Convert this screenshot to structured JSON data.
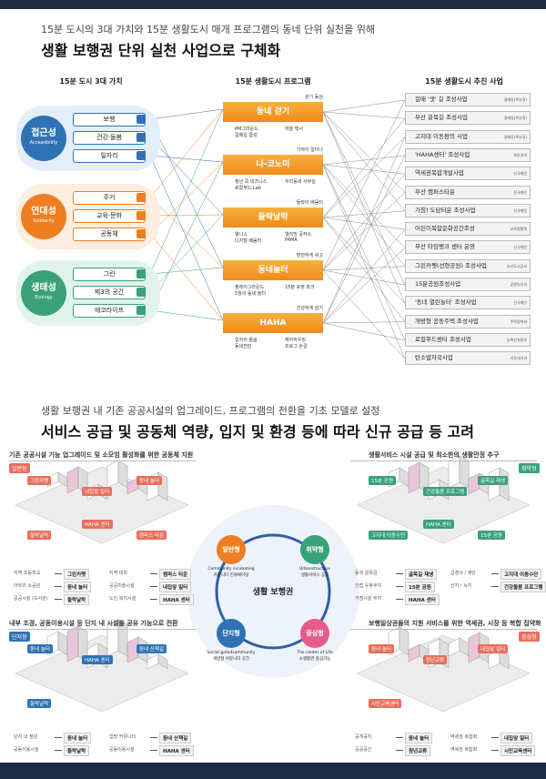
{
  "header": {
    "subtitle": "15분 도시의 3대 가치와 15분 생활도시 매개 프로그램의 동네 단위 실천을 위해",
    "title": "생활 보행권 단위 실천 사업으로 구체화"
  },
  "columns": [
    "15분 도시 3대 가치",
    "15분 생활도시 프로그램",
    "15분 생활도시 추진 사업"
  ],
  "values": [
    {
      "name": "접근성",
      "en": "Accessibility",
      "items": [
        "보행",
        "건강·돌봄",
        "일자리"
      ]
    },
    {
      "name": "연대성",
      "en": "Solidarity",
      "items": [
        "주거",
        "교육·문화",
        "공동체"
      ]
    },
    {
      "name": "생태성",
      "en": "Ecology",
      "items": [
        "그린",
        "제3의 공간",
        "에코라이프"
      ]
    }
  ],
  "programs": [
    {
      "tag": "걷기 동심",
      "name": "동네 걷기",
      "items": [
        "PM그라운드",
        "마을 택시",
        "걸매길 줍깅"
      ]
    },
    {
      "tag": "가까이 일터나",
      "name": "나-코노미",
      "items": [
        "청년 콕 비즈니스",
        "우리동네 사무실",
        "로컬푸드 Lab"
      ]
    },
    {
      "tag": "들락이 배움터",
      "name": "들락날락",
      "items": [
        "웰니스",
        "웰리빙 공작소",
        "디지털 배움터",
        "PAMA"
      ]
    },
    {
      "tag": "편안하게 쉬고",
      "name": "동네놀터",
      "items": [
        "플레이그라운드",
        "15분 포켓 파크",
        "5월의 동네 놀터"
      ]
    },
    {
      "tag": "건강하게 살기",
      "name": "HAHA",
      "items": [
        "일자리 돌봄",
        "케어하우징",
        "동네전담",
        "프로그 손길"
      ]
    }
  ],
  "projects": [
    {
      "name": "걸매 '샛' 길 조성사업",
      "tag": "걸매동(북부권)"
    },
    {
      "name": "부산 골목길 조성사업",
      "tag": "걸매동(북부권)"
    },
    {
      "name": "고지대 이동편의 사업",
      "tag": "걸매동(북부권)"
    },
    {
      "name": "'HAHA센터' 조성사업",
      "tag": "북부권역"
    },
    {
      "name": "역세권복합개발사업",
      "tag": "신규제안"
    },
    {
      "name": "부산 캠퍼스타운",
      "tag": "신규제안"
    },
    {
      "name": "가칭) 도담터운 조성사업",
      "tag": "신규제안"
    },
    {
      "name": "어린이복합문화공간조성",
      "tag": "교육청협력"
    },
    {
      "name": "부산 타임뱅크 센터 운영",
      "tag": "신규제안"
    },
    {
      "name": "그린카펫(선형공원) 조성사업",
      "tag": "부산도시공사"
    },
    {
      "name": "15분공원조성사업",
      "tag": "공원녹지과"
    },
    {
      "name": "'동네 열린놀터' 조성사업",
      "tag": "신규제안"
    },
    {
      "name": "개방형 공동주택 조성사업",
      "tag": "주택정책과"
    },
    {
      "name": "로컬푸드센터 조성사업",
      "tag": "농축산유통과"
    },
    {
      "name": "탄소발자국사업",
      "tag": "기후대기과"
    }
  ],
  "section2": {
    "subtitle": "생활 보행권 내 기존 공공시설의 업그레이드, 프로그램의 전환을 기초 모델로 설정",
    "title": "서비스 공급 및 공동체 역량, 입지 및 환경 등에 따라 신규 공급 등 고려"
  },
  "quadrants": [
    {
      "caption": "기존 공공시설 기능 업그레이드 및 소모임 활성화를 위한 공동체 지원",
      "badge": "일반형",
      "labels": [
        "그린카펫",
        "내집앞 일터",
        "동네 놀터",
        "들락날락",
        "HAHA 센터",
        "캠퍼스 타운"
      ],
      "rows": [
        {
          "from": "지역 초등학교",
          "to": "그린카펫"
        },
        {
          "from": "아트미 소공원",
          "to": "동네 놀터"
        },
        {
          "from": "공공시설 (도서관)",
          "to": "들락날락"
        },
        {
          "from": "지역 대학",
          "to": "캠퍼스 타운"
        },
        {
          "from": "공공미술시설",
          "to": "내집앞 일터"
        },
        {
          "from": "노인 복지시설",
          "to": "HAHA 센터"
        }
      ]
    },
    {
      "caption": "생활서비스 시설 공급 및 최소한의 생활안정 추구",
      "badge": "취약형",
      "labels": [
        "15분 공원",
        "건강돌봄 프로그램",
        "골목길 재생",
        "고지대 이동수단",
        "HAHA 센터",
        "15분 공원"
      ],
      "rows": [
        {
          "from": "동색 골목길",
          "to": "골목길 재생"
        },
        {
          "from": "인접 유휴부지",
          "to": "15분 공원"
        },
        {
          "from": "거점시설 부지",
          "to": "HAHA 센터"
        },
        {
          "from": "급경사 / 계단",
          "to": "고지대 이동수단"
        },
        {
          "from": "산지 / 녹지",
          "to": "건강돌봄 프로그램"
        }
      ]
    },
    {
      "caption": "내부 조경, 공동이용시설 등 단지 내 시설을 공유 기능으로 전환",
      "badge": "단지형",
      "labels": [
        "동네 놀터",
        "HAHA 센터",
        "동네 산책길",
        "들락날락"
      ],
      "rows": [
        {
          "from": "단지 내 정원",
          "to": "동네 놀터"
        },
        {
          "from": "공동이용시설",
          "to": "들락날락"
        },
        {
          "from": "입방 커뮤니티",
          "to": "동네 산책길"
        },
        {
          "from": "공동이용시설",
          "to": "HAHA 센터"
        }
      ]
    },
    {
      "caption": "보행일상권들의 지원 서비스를 위한 역세권, 시장 등 복합 집약화",
      "badge": "중심형",
      "labels": [
        "동네 놀터",
        "청년교류",
        "내집앞 일터",
        "시민교육센터"
      ],
      "rows": [
        {
          "from": "공개공지",
          "to": "동네 놀터"
        },
        {
          "from": "공공공간",
          "to": "청년교류"
        },
        {
          "from": "역세권 복합화",
          "to": "내집앞 일터"
        },
        {
          "from": "역세권 복합화",
          "to": "시민교육센터"
        }
      ]
    }
  ],
  "center": {
    "title": "생활 보행권",
    "types": [
      {
        "name": "일반형",
        "en": "Community incubating",
        "ko": "커뮤니티 인큐베이팅"
      },
      {
        "name": "취약형",
        "en": "Urbanstructure",
        "ko": "생활서비스 공급"
      },
      {
        "name": "단지형",
        "en": "Social gatedcommunity",
        "ko": "개방형 커뮤니티 공간"
      },
      {
        "name": "중심형",
        "en": "The center of Life",
        "ko": "소생활권 중심기능"
      }
    ]
  }
}
